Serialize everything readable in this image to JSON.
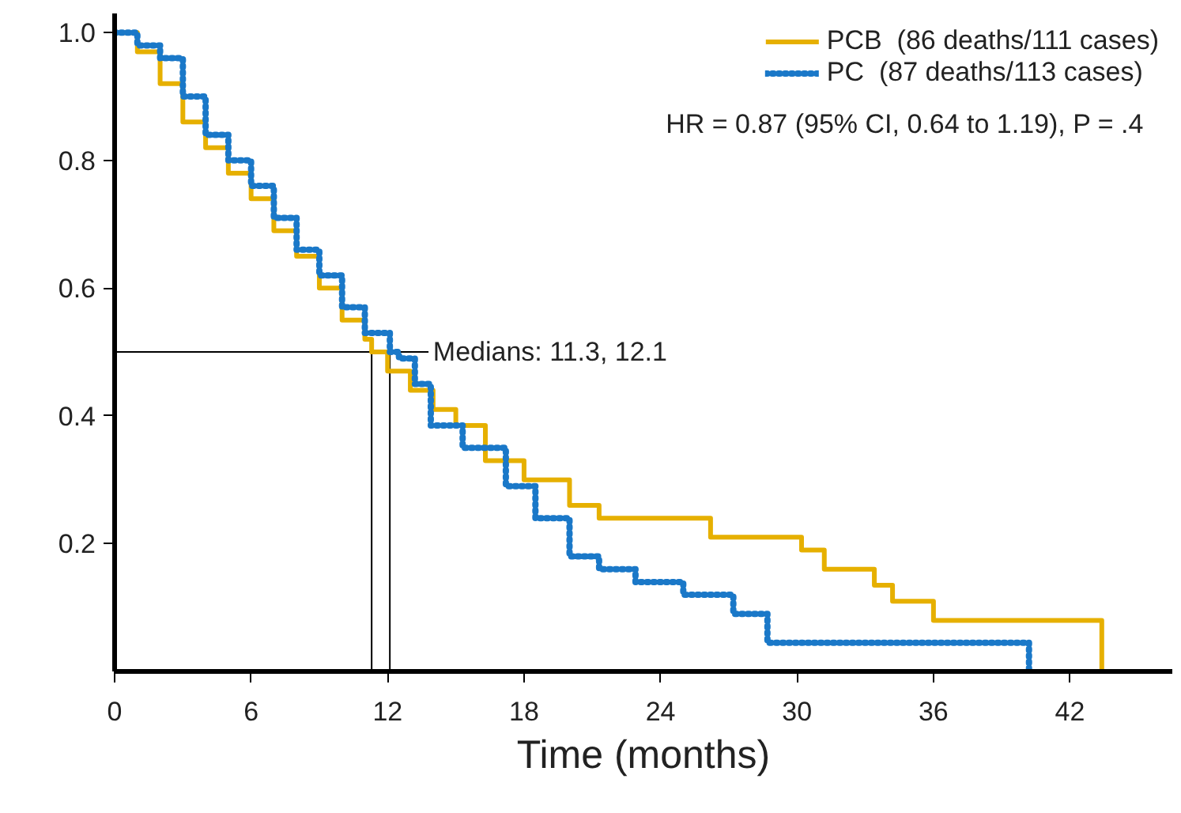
{
  "chart_data": {
    "type": "step",
    "xlabel": "Time (months)",
    "series": [
      {
        "name": "PCB  (86 deaths/111 cases)",
        "color": "#e6b000",
        "line_style": "solid",
        "x": [
          0,
          1,
          2,
          3,
          4,
          5,
          6,
          7,
          8,
          9,
          10,
          11,
          11.3,
          12,
          13,
          14,
          15,
          16.3,
          18,
          20,
          21.3,
          26.2,
          30.2,
          31.2,
          33.4,
          34.2,
          36,
          43.4
        ],
        "values": [
          1.0,
          0.97,
          0.92,
          0.86,
          0.82,
          0.78,
          0.74,
          0.69,
          0.65,
          0.6,
          0.55,
          0.52,
          0.5,
          0.47,
          0.44,
          0.41,
          0.385,
          0.33,
          0.3,
          0.26,
          0.24,
          0.21,
          0.19,
          0.16,
          0.135,
          0.11,
          0.08,
          0
        ]
      },
      {
        "name": "PC  (87 deaths/113 cases)",
        "color": "#1a78c8",
        "line_style": "dotted",
        "x": [
          0,
          1,
          2,
          3,
          4,
          5,
          6,
          7,
          8,
          9,
          10,
          11,
          12.1,
          12.5,
          13.2,
          13.9,
          15.3,
          17.2,
          18.5,
          20,
          21.3,
          22.9,
          25,
          27.2,
          28.7,
          40.2
        ],
        "values": [
          1.0,
          0.98,
          0.96,
          0.9,
          0.84,
          0.8,
          0.76,
          0.71,
          0.66,
          0.62,
          0.57,
          0.53,
          0.5,
          0.49,
          0.45,
          0.385,
          0.35,
          0.29,
          0.24,
          0.18,
          0.16,
          0.14,
          0.12,
          0.09,
          0.045,
          0
        ]
      }
    ],
    "xlim": [
      0,
      46.5
    ],
    "ylim": [
      0,
      1.03
    ],
    "xticks": [
      0,
      6,
      12,
      18,
      24,
      30,
      36,
      42
    ],
    "yticks": [
      {
        "value": 0.2,
        "label": "0.2"
      },
      {
        "value": 0.4,
        "label": "0.4"
      },
      {
        "value": 0.6,
        "label": "0.6"
      },
      {
        "value": 0.8,
        "label": "0.8"
      },
      {
        "value": 1,
        "label": "1.0"
      }
    ],
    "ref_lines": [
      {
        "axis": "y",
        "value": 0.5,
        "label": null,
        "color": "#000000"
      },
      {
        "axis": "x",
        "value": 11.3,
        "label": null,
        "color": "#000000"
      },
      {
        "axis": "x",
        "value": 12.1,
        "label": null,
        "color": "#000000"
      }
    ],
    "annotations": [
      {
        "text": "Medians: 11.3, 12.1",
        "x": 14,
        "y": 0.5
      },
      "HR = 0.87 (95% CI, 0.64 to 1.19), P = .4"
    ],
    "legend": "top right",
    "grid": false
  }
}
